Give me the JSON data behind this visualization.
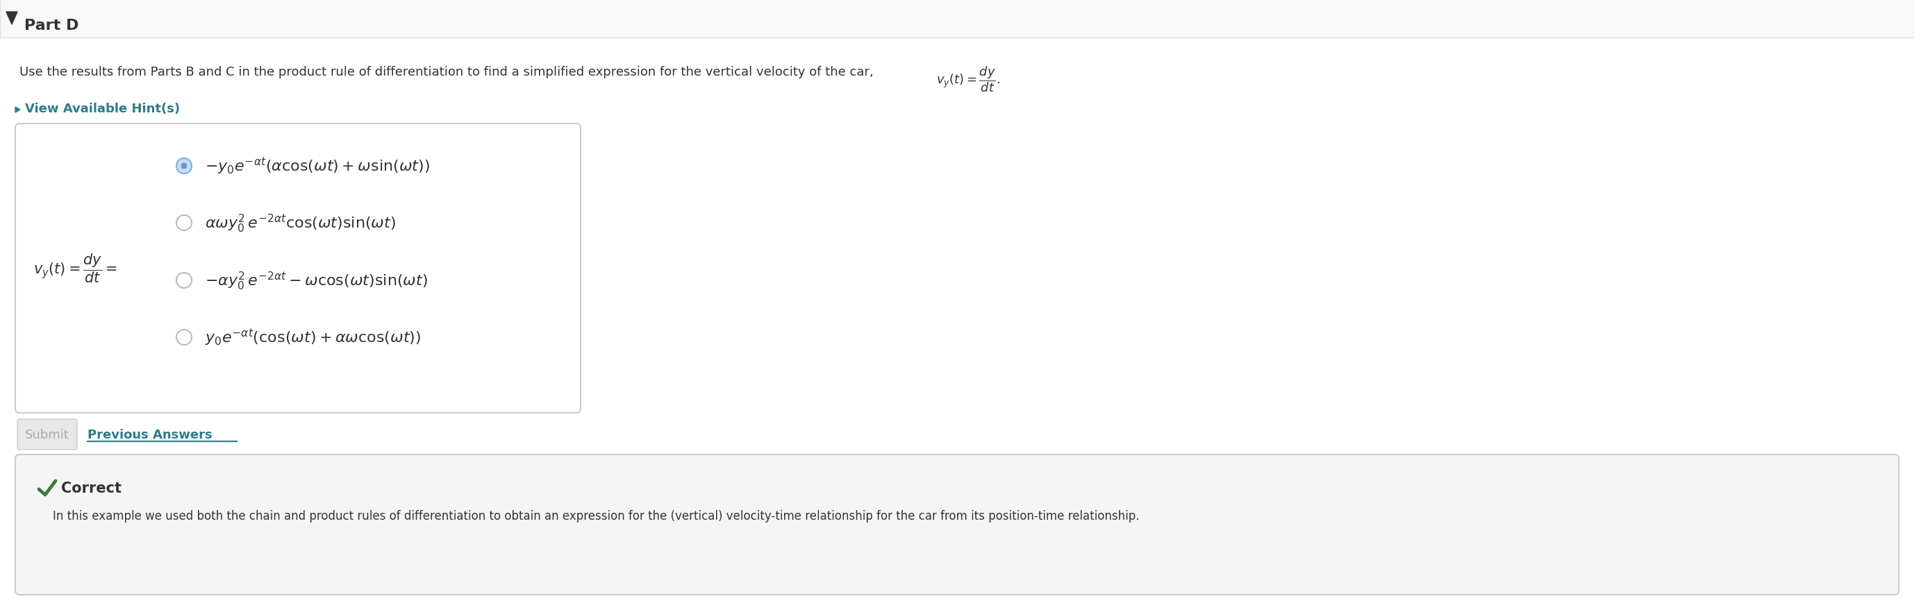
{
  "white": "#ffffff",
  "light_gray_bg": "#f5f5f5",
  "header_bg": "#f8f8f8",
  "part_d_text": "Part D",
  "question_text": "Use the results from Parts B and C in the product rule of differentiation to find a simplified expression for the vertical velocity of the car, ",
  "hint_text": "View Available Hint(s)",
  "submit_text": "Submit",
  "prev_answers_text": "Previous Answers",
  "correct_title": "Correct",
  "correct_body": "In this example we used both the chain and product rules of differentiation to obtain an expression for the (vertical) velocity-time relationship for the car from its position-time relationship.",
  "teal_color": "#2d7b8c",
  "green_color": "#3a7d3a",
  "border_color": "#cccccc",
  "option_circle_color": "#bbbbbb",
  "selected_circle_fill": "#c8ddf5",
  "selected_circle_edge": "#7aaee8",
  "selected_dot_color": "#6699cc",
  "dark_text": "#333333",
  "gray_btn": "#e8e8e8",
  "gray_btn_border": "#cccccc",
  "gray_btn_text": "#aaaaaa",
  "separator_color": "#e0e0e0"
}
